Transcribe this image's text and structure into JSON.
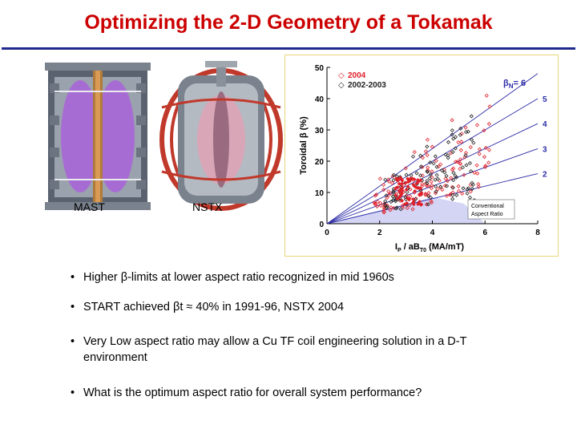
{
  "slide": {
    "title": "Optimizing the 2-D Geometry of a Tokamak"
  },
  "devices": [
    {
      "label": "MAST"
    },
    {
      "label": "NSTX"
    }
  ],
  "chart_data": {
    "type": "scatter",
    "ylabel": "Toroidal β (%)",
    "xlabel": "I",
    "xlabel_sub_p": "P",
    "xlabel_rest": " / aB",
    "xlabel_sub_t0": "T0",
    "xlabel_units": " (MA/mT)",
    "x_ticks": [
      "0",
      "2",
      "4",
      "6",
      "8"
    ],
    "y_ticks": [
      "0",
      "10",
      "20",
      "30",
      "40",
      "50"
    ],
    "xlim": [
      0,
      8
    ],
    "ylim": [
      0,
      50
    ],
    "legend": [
      {
        "marker": "◇",
        "label": "2004",
        "color": "#e0202a"
      },
      {
        "marker": "◇",
        "label": "2002-2003",
        "color": "#222222"
      }
    ],
    "beta_n_label": "β",
    "beta_n_sub": "N",
    "beta_n_value": "= 6",
    "beta_n_lines": [
      {
        "label": "5",
        "value": 5
      },
      {
        "label": "4",
        "value": 4
      },
      {
        "label": "3",
        "value": 3
      },
      {
        "label": "2",
        "value": 2
      }
    ],
    "conventional_label_1": "Conventional",
    "conventional_label_2": "Aspect Ratio",
    "colors": {
      "line": "#2c2ca8",
      "shade": "#c9c9f2",
      "red": "#e0202a",
      "black": "#222222"
    }
  },
  "bullets": [
    {
      "dot": "•",
      "text": "Higher β-limits at lower aspect ratio recognized in mid 1960s"
    },
    {
      "dot": "•",
      "text": "START achieved βt ≈ 40% in 1991-96, NSTX 2004"
    },
    {
      "dot": "•",
      "text": "Very Low aspect ratio may allow a Cu TF coil engineering solution in a D-T environment"
    },
    {
      "dot": "•",
      "text": "What is the optimum aspect ratio for overall system performance?"
    }
  ]
}
